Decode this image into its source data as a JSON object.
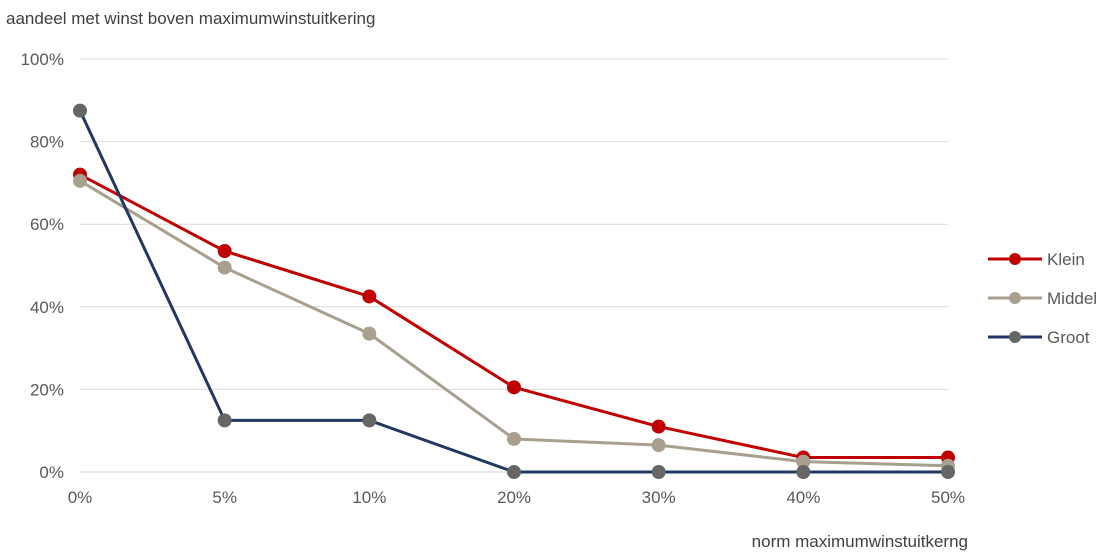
{
  "chart_data": {
    "type": "line",
    "title": "",
    "ylabel": "aandeel met winst boven maximumwinstuitkering",
    "xlabel": "norm maximumwinstuitkerng",
    "categories": [
      "0%",
      "5%",
      "10%",
      "20%",
      "30%",
      "40%",
      "50%"
    ],
    "y_ticks": [
      "0%",
      "20%",
      "40%",
      "60%",
      "80%",
      "100%"
    ],
    "ylim": [
      0,
      100
    ],
    "grid": "horizontal",
    "legend_position": "right",
    "series": [
      {
        "name": "Klein",
        "color": "#c00000",
        "values": [
          72,
          53.5,
          42.5,
          20.5,
          11,
          3.5,
          3.5
        ]
      },
      {
        "name": "Middel",
        "color": "#a89f8f",
        "values": [
          70.5,
          49.5,
          33.5,
          8,
          6.5,
          2.5,
          1.5
        ]
      },
      {
        "name": "Groot",
        "color": "#1f3864",
        "marker_color": "#666666",
        "values": [
          87.5,
          12.5,
          12.5,
          0,
          0,
          0,
          0
        ]
      }
    ]
  }
}
